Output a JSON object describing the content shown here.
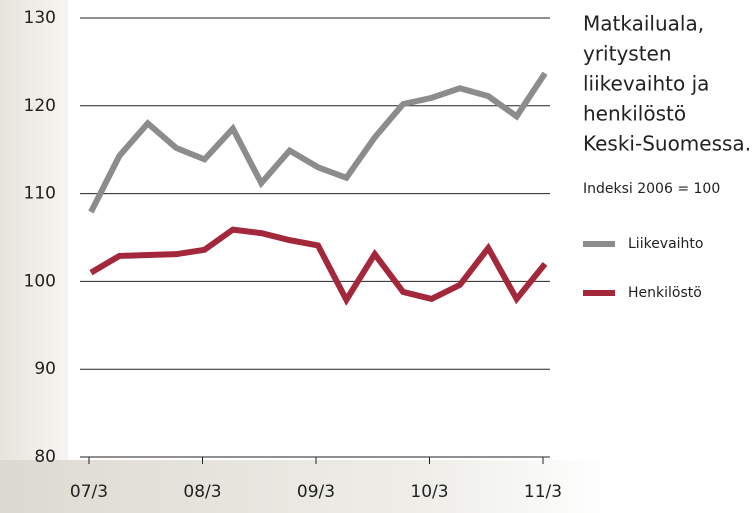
{
  "chart_data": {
    "type": "line",
    "title": [
      "Matkailuala,",
      "yritysten",
      "liikevaihto ja",
      "henkilöstö",
      "Keski-Suomessa."
    ],
    "subtitle": "Indeksi 2006 = 100",
    "categories": [
      "07/3",
      null,
      null,
      null,
      "08/3",
      null,
      null,
      null,
      "09/3",
      null,
      null,
      null,
      "10/3",
      null,
      null,
      null,
      "11/3"
    ],
    "series": [
      {
        "name": "Liikevaihto",
        "color": "#8c8c8c",
        "values": [
          107.9,
          114.3,
          118.0,
          115.2,
          113.9,
          117.4,
          111.2,
          114.9,
          113.0,
          111.8,
          116.4,
          120.2,
          120.9,
          122.0,
          121.1,
          118.8,
          123.7
        ]
      },
      {
        "name": "Henkilöstö",
        "color": "#a3283b",
        "values": [
          101.0,
          102.9,
          103.0,
          103.1,
          103.6,
          105.9,
          105.5,
          104.7,
          104.1,
          97.9,
          103.1,
          98.8,
          98.0,
          99.6,
          103.8,
          98.0,
          102.0
        ]
      }
    ],
    "ylim": [
      80,
      130
    ],
    "yticks": [
      80,
      90,
      100,
      110,
      120,
      130
    ],
    "grid": true
  }
}
